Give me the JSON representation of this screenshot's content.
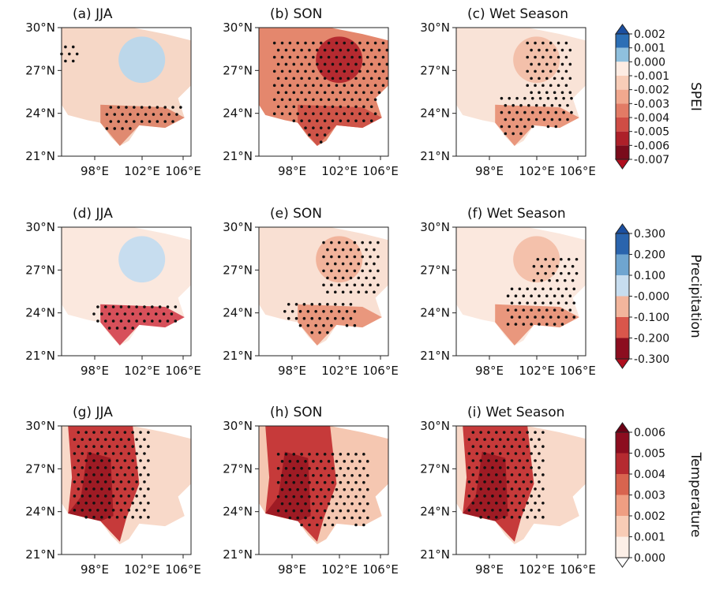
{
  "rows": [
    {
      "colorbar_label": "SPEI",
      "colorbar_ticks": [
        "0.002",
        "0.001",
        "0.000",
        "-0.001",
        "-0.002",
        "-0.003",
        "-0.004",
        "-0.005",
        "-0.006",
        "-0.007"
      ],
      "panels": [
        {
          "title": "(a) JJA"
        },
        {
          "title": "(b) SON"
        },
        {
          "title": "(c) Wet Season"
        }
      ]
    },
    {
      "colorbar_label": "Precipitation",
      "colorbar_ticks": [
        "0.300",
        "0.200",
        "0.100",
        "-0.000",
        "-0.100",
        "-0.200",
        "-0.300"
      ],
      "panels": [
        {
          "title": "(d) JJA"
        },
        {
          "title": "(e) SON"
        },
        {
          "title": "(f) Wet Season"
        }
      ]
    },
    {
      "colorbar_label": "Temperature",
      "colorbar_ticks": [
        "0.006",
        "0.005",
        "0.004",
        "0.003",
        "0.002",
        "0.001",
        "0.000"
      ],
      "panels": [
        {
          "title": "(g) JJA"
        },
        {
          "title": "(h) SON"
        },
        {
          "title": "(i) Wet Season"
        }
      ]
    }
  ],
  "x_ticks": [
    "98°E",
    "102°E",
    "106°E"
  ],
  "y_ticks": [
    "30°N",
    "27°N",
    "24°N",
    "21°N"
  ]
}
